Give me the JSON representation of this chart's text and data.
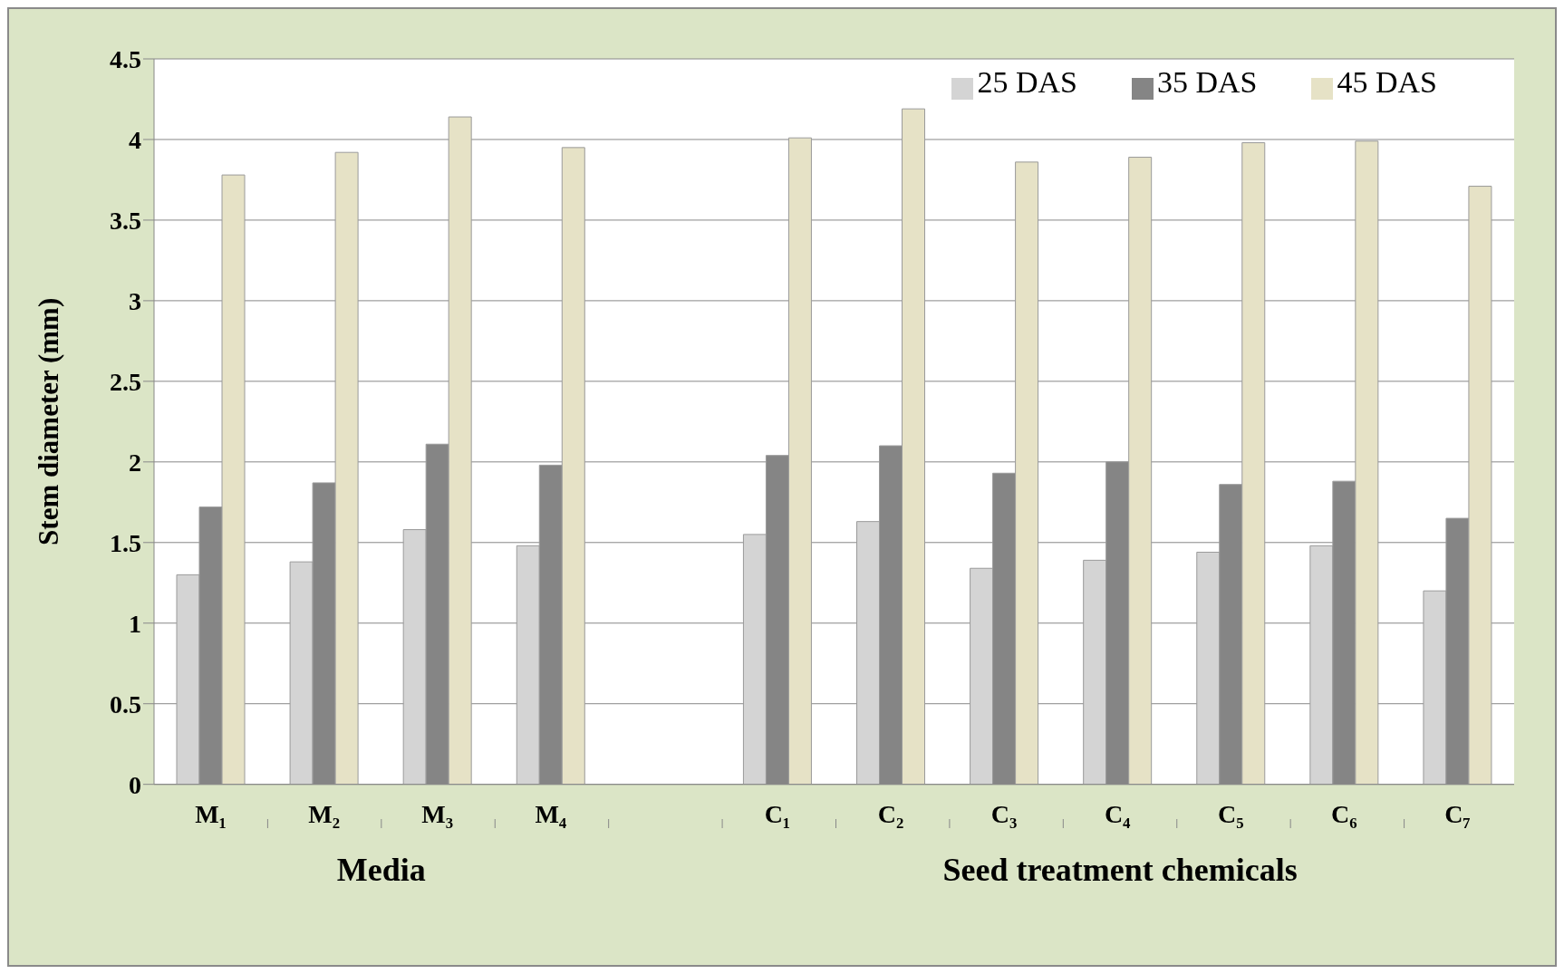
{
  "chart_data": {
    "type": "bar",
    "ylabel": "Stem diameter (mm)",
    "categories": [
      "M₁",
      "M₂",
      "M₃",
      "M₄",
      null,
      "C₁",
      "C₂",
      "C₃",
      "C₄",
      "C₅",
      "C₆",
      "C₇"
    ],
    "series": [
      {
        "name": "25 DAS",
        "color": "#d4d4d4",
        "values": [
          1.3,
          1.38,
          1.58,
          1.48,
          null,
          1.55,
          1.63,
          1.34,
          1.39,
          1.44,
          1.48,
          1.2
        ]
      },
      {
        "name": "35 DAS",
        "color": "#858585",
        "values": [
          1.72,
          1.87,
          2.11,
          1.98,
          null,
          2.04,
          2.1,
          1.93,
          2.0,
          1.86,
          1.88,
          1.65
        ]
      },
      {
        "name": "45 DAS",
        "color": "#e6e2c6",
        "values": [
          3.78,
          3.92,
          4.14,
          3.95,
          null,
          4.01,
          4.19,
          3.86,
          3.89,
          3.98,
          3.99,
          3.71
        ]
      }
    ],
    "ylim": [
      0,
      4.5
    ],
    "yticks": [
      0,
      0.5,
      1,
      1.5,
      2,
      2.5,
      3,
      3.5,
      4,
      4.5
    ],
    "grid": "y",
    "legend": "top right",
    "annotations": [
      "Media",
      "Seed treatment chemicals"
    ]
  }
}
